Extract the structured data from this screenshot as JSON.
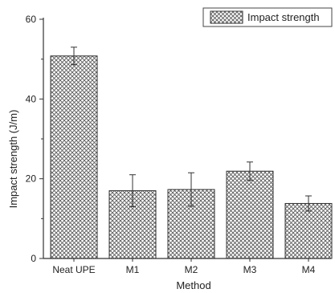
{
  "chart_data": {
    "type": "bar",
    "categories": [
      "Neat UPE",
      "M1",
      "M2",
      "M3",
      "M4"
    ],
    "series": [
      {
        "name": "Impact strength",
        "values": [
          50.8,
          17.0,
          17.3,
          21.9,
          13.8
        ],
        "errors": [
          2.2,
          4.0,
          4.2,
          2.3,
          1.9
        ]
      }
    ],
    "xlabel": "Method",
    "ylabel": "Impact strength (J/m)",
    "ylim": [
      0,
      60
    ],
    "yticks": [
      0,
      20,
      40,
      60
    ],
    "grid": false,
    "legend": "top-right",
    "pattern": "crosshatch",
    "colors": {
      "bar_fill": "#ffffff",
      "hatch": "#5a5a5a",
      "edge": "#333333",
      "axis": "#333333"
    }
  }
}
